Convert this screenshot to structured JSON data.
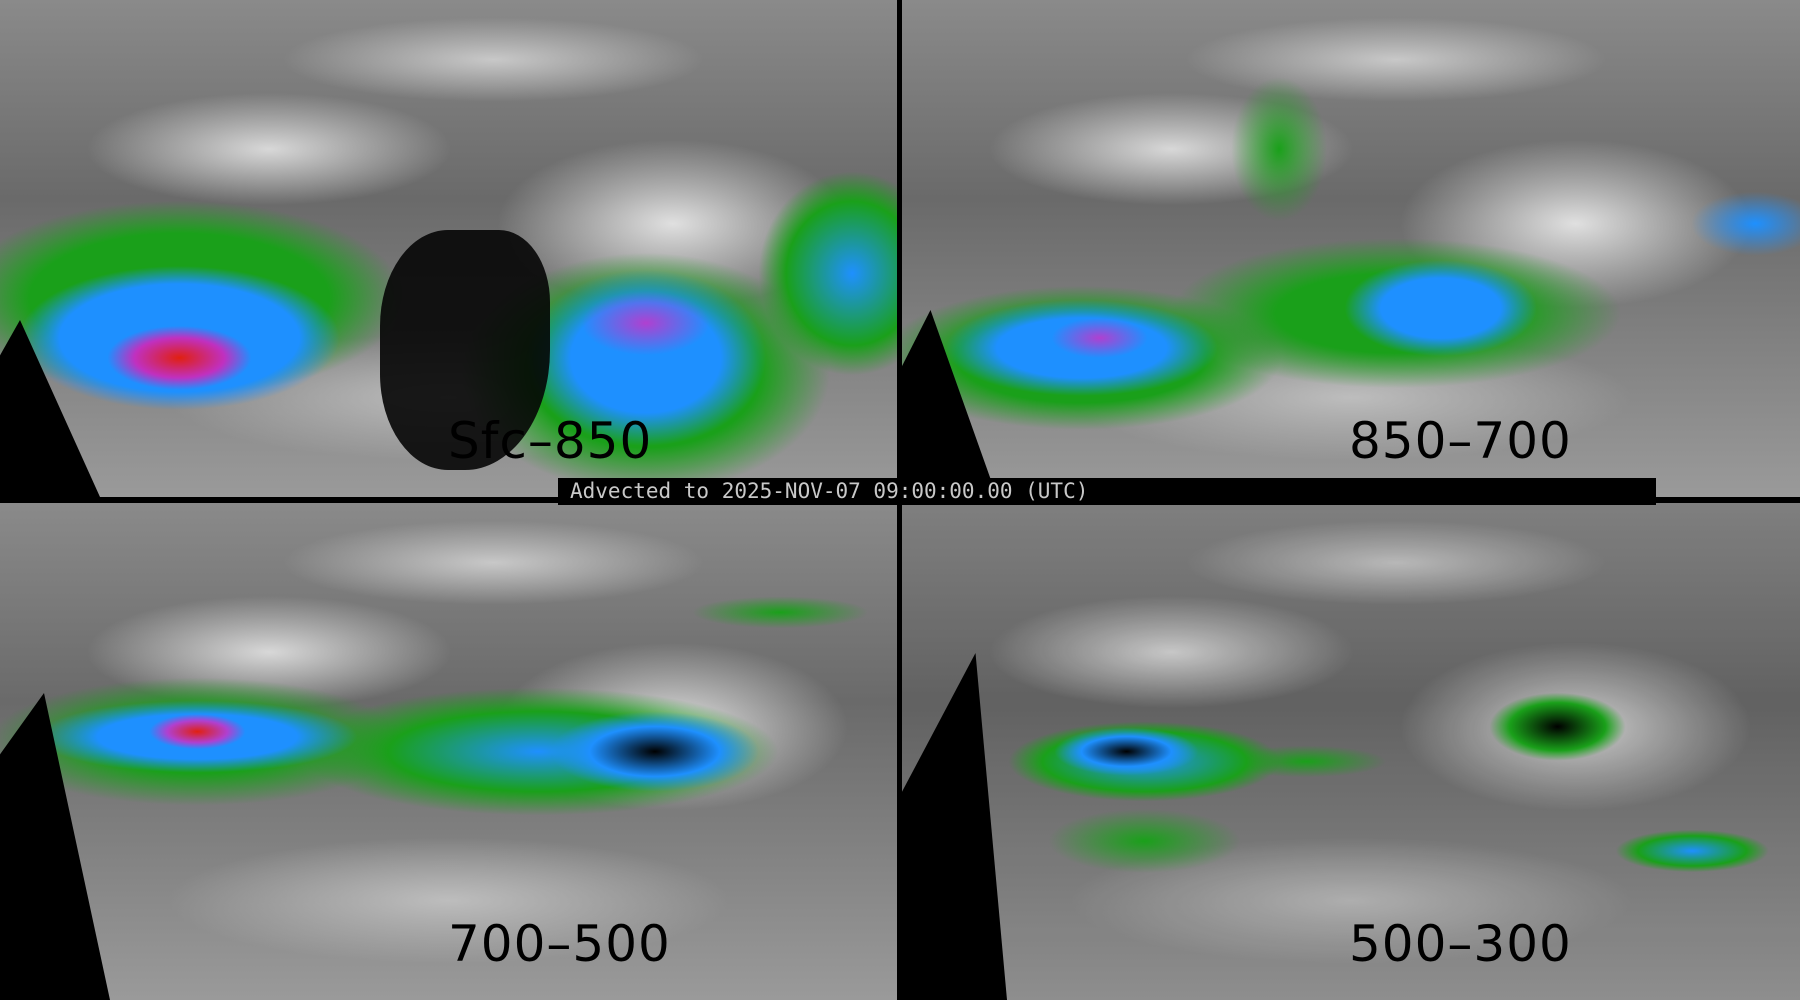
{
  "timestamp_bar": "Advected to 2025-NOV-07 09:00:00.00 (UTC)",
  "panels": [
    {
      "label": "Sfc–850"
    },
    {
      "label": "850–700"
    },
    {
      "label": "700–500"
    },
    {
      "label": "500–300"
    }
  ],
  "colors": {
    "background_gray": "#7a7a7a",
    "low": "#1aa01a",
    "mid": "#1e90ff",
    "high": "#b040d0",
    "max": "#e02010",
    "mask": "#000000"
  }
}
